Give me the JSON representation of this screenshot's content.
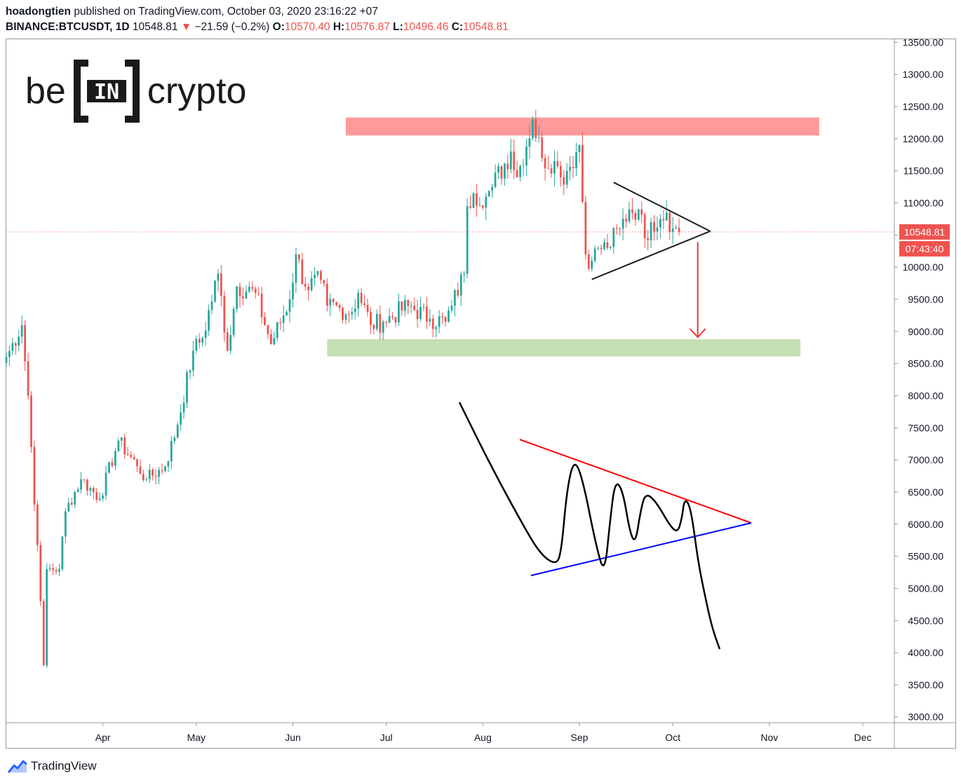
{
  "header": {
    "author": "hoadongtien",
    "published_text": "published on TradingView.com, October 03, 2020 23:16:22 +07",
    "symbol": "BINANCE:BTCUSDT, 1D",
    "last": "10548.81",
    "arrow": "▼",
    "change": "−21.59 (−0.2%)",
    "o_label": "O:",
    "o_value": "10570.40",
    "h_label": "H:",
    "h_value": "10576.87",
    "l_label": "L:",
    "l_value": "10496.46",
    "c_label": "C:",
    "c_value": "10548.81"
  },
  "logo": {
    "left": "be",
    "mid": "IN",
    "right": "crypto"
  },
  "price_tag": {
    "price": "10548.81",
    "countdown": "07:43:40"
  },
  "footer": {
    "brand": "TradingView"
  },
  "colors": {
    "up": "#26a69a",
    "down": "#ef5350",
    "resistance": "#ff9a9a",
    "support": "#c5e0b4",
    "axis_text": "#131722"
  },
  "chart_data": {
    "type": "candlestick",
    "symbol": "BINANCE:BTCUSDT",
    "interval": "1D",
    "ylim": [
      3000,
      13500
    ],
    "y_ticks": [
      "13500.00",
      "13000.00",
      "12500.00",
      "12000.00",
      "11500.00",
      "11000.00",
      "10500.00",
      "10000.00",
      "9500.00",
      "9000.00",
      "8500.00",
      "8000.00",
      "7500.00",
      "7000.00",
      "6500.00",
      "6000.00",
      "5500.00",
      "5000.00",
      "4500.00",
      "4000.00",
      "3500.00",
      "3000.00"
    ],
    "x_ticks": [
      "Apr",
      "May",
      "Jun",
      "Jul",
      "Aug",
      "Sep",
      "Oct",
      "Nov",
      "Dec"
    ],
    "x_tick_dates": [
      "2020-04-01",
      "2020-05-01",
      "2020-06-01",
      "2020-07-01",
      "2020-08-01",
      "2020-09-01",
      "2020-10-01",
      "2020-11-01",
      "2020-12-01"
    ],
    "x_range": [
      "2020-03-01",
      "2020-12-31"
    ],
    "last_price": 10548.81,
    "zones": [
      {
        "type": "resistance",
        "from_date": "2020-06-18",
        "to_date": "2020-11-17",
        "low": 12050,
        "high": 12330
      },
      {
        "type": "support",
        "from_date": "2020-06-12",
        "to_date": "2020-11-11",
        "low": 8610,
        "high": 8880
      }
    ],
    "triangle": {
      "upper": [
        [
          "2020-09-12",
          11320
        ],
        [
          "2020-10-13",
          10560
        ]
      ],
      "lower": [
        [
          "2020-09-05",
          9810
        ],
        [
          "2020-10-13",
          10560
        ]
      ]
    },
    "projection_arrow": {
      "date": "2020-10-09",
      "from": 10390,
      "to": 8910
    },
    "anchors": [
      [
        "2020-03-01",
        8600
      ],
      [
        "2020-03-06",
        9100
      ],
      [
        "2020-03-08",
        8000
      ],
      [
        "2020-03-12",
        4800
      ],
      [
        "2020-03-13",
        3800
      ],
      [
        "2020-03-14",
        5300
      ],
      [
        "2020-03-18",
        5300
      ],
      [
        "2020-03-20",
        6200
      ],
      [
        "2020-03-25",
        6700
      ],
      [
        "2020-03-31",
        6400
      ],
      [
        "2020-04-06",
        7300
      ],
      [
        "2020-04-12",
        6900
      ],
      [
        "2020-04-15",
        6700
      ],
      [
        "2020-04-21",
        6900
      ],
      [
        "2020-04-25",
        7550
      ],
      [
        "2020-04-30",
        8700
      ],
      [
        "2020-05-03",
        8900
      ],
      [
        "2020-05-08",
        9900
      ],
      [
        "2020-05-11",
        8700
      ],
      [
        "2020-05-14",
        9700
      ],
      [
        "2020-05-20",
        9600
      ],
      [
        "2020-05-25",
        8800
      ],
      [
        "2020-05-31",
        9500
      ],
      [
        "2020-06-02",
        10200
      ],
      [
        "2020-06-05",
        9700
      ],
      [
        "2020-06-10",
        9800
      ],
      [
        "2020-06-12",
        9400
      ],
      [
        "2020-06-20",
        9300
      ],
      [
        "2020-06-22",
        9600
      ],
      [
        "2020-06-26",
        9100
      ],
      [
        "2020-06-30",
        9150
      ],
      [
        "2020-07-08",
        9400
      ],
      [
        "2020-07-15",
        9200
      ],
      [
        "2020-07-20",
        9150
      ],
      [
        "2020-07-22",
        9400
      ],
      [
        "2020-07-26",
        9900
      ],
      [
        "2020-07-27",
        10950
      ],
      [
        "2020-07-29",
        11150
      ],
      [
        "2020-08-02",
        11100
      ],
      [
        "2020-08-04",
        11250
      ],
      [
        "2020-08-10",
        11800
      ],
      [
        "2020-08-12",
        11400
      ],
      [
        "2020-08-17",
        12300
      ],
      [
        "2020-08-20",
        11700
      ],
      [
        "2020-08-24",
        11650
      ],
      [
        "2020-08-26",
        11400
      ],
      [
        "2020-08-28",
        11500
      ],
      [
        "2020-09-01",
        11900
      ],
      [
        "2020-09-03",
        10200
      ],
      [
        "2020-09-05",
        10100
      ],
      [
        "2020-09-07",
        10300
      ],
      [
        "2020-09-10",
        10300
      ],
      [
        "2020-09-14",
        10600
      ],
      [
        "2020-09-17",
        10900
      ],
      [
        "2020-09-20",
        10900
      ],
      [
        "2020-09-22",
        10450
      ],
      [
        "2020-09-24",
        10700
      ],
      [
        "2020-09-27",
        10750
      ],
      [
        "2020-09-29",
        10850
      ],
      [
        "2020-10-01",
        10600
      ],
      [
        "2020-10-03",
        10548.81
      ]
    ],
    "inset_pattern": {
      "type": "symmetrical-triangle-breakdown-illustration",
      "upper_line": [
        [
          741,
          627
        ],
        [
          1071,
          746
        ]
      ],
      "lower_line": [
        [
          757,
          821
        ],
        [
          1071,
          746
        ]
      ],
      "curve": [
        [
          655,
          574
        ],
        [
          700,
          665
        ],
        [
          745,
          748
        ],
        [
          770,
          790
        ],
        [
          792,
          806
        ],
        [
          800,
          790
        ],
        [
          808,
          700
        ],
        [
          818,
          655
        ],
        [
          830,
          680
        ],
        [
          850,
          780
        ],
        [
          862,
          820
        ],
        [
          870,
          740
        ],
        [
          877,
          685
        ],
        [
          888,
          700
        ],
        [
          898,
          760
        ],
        [
          906,
          775
        ],
        [
          913,
          730
        ],
        [
          920,
          703
        ],
        [
          935,
          715
        ],
        [
          955,
          750
        ],
        [
          966,
          760
        ],
        [
          972,
          740
        ],
        [
          976,
          710
        ],
        [
          985,
          725
        ],
        [
          995,
          800
        ],
        [
          1005,
          850
        ],
        [
          1015,
          895
        ],
        [
          1026,
          926
        ]
      ]
    }
  }
}
